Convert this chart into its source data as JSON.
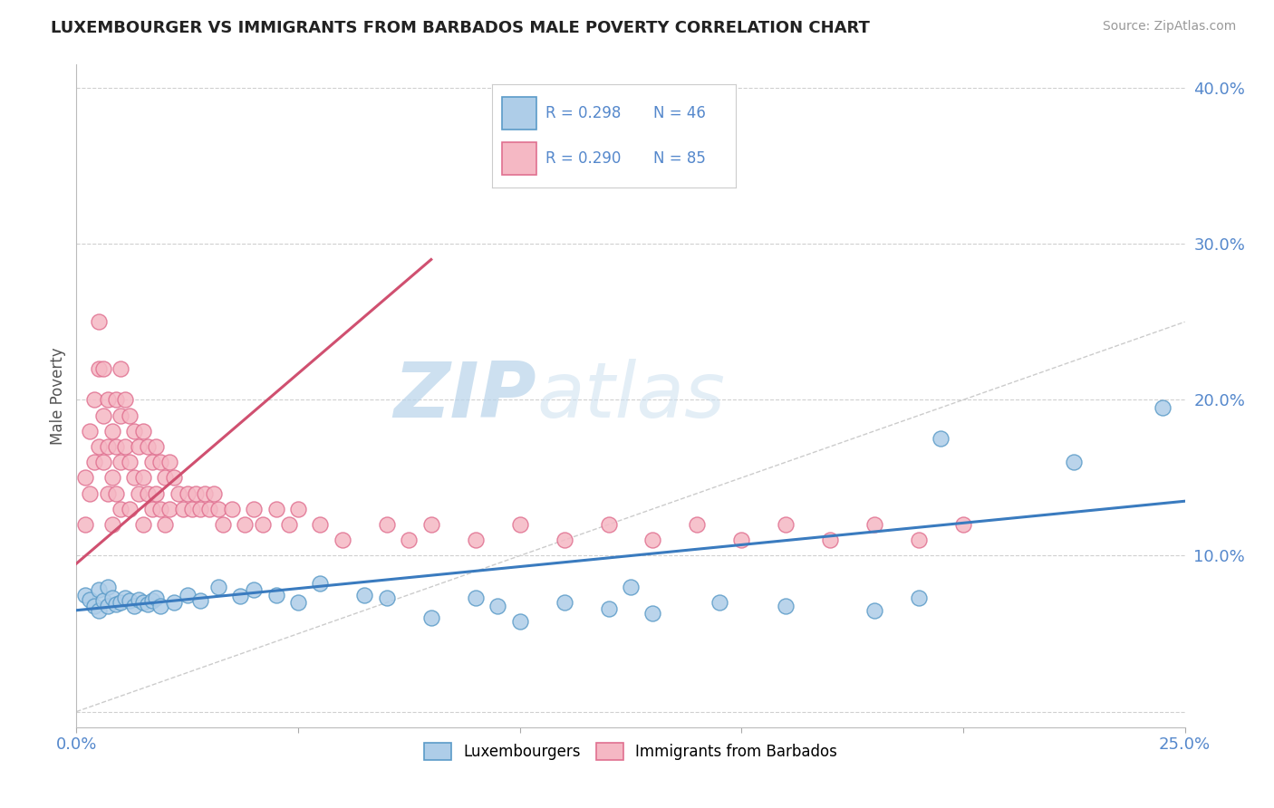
{
  "title": "LUXEMBOURGER VS IMMIGRANTS FROM BARBADOS MALE POVERTY CORRELATION CHART",
  "source": "Source: ZipAtlas.com",
  "ylabel": "Male Poverty",
  "xlim": [
    0.0,
    0.25
  ],
  "ylim": [
    -0.01,
    0.415
  ],
  "legend_r1": "R = 0.298",
  "legend_n1": "N = 46",
  "legend_r2": "R = 0.290",
  "legend_n2": "N = 85",
  "color_lux_fill": "#aecde8",
  "color_lux_edge": "#5b9bc8",
  "color_bar_fill": "#f5b8c4",
  "color_bar_edge": "#e07090",
  "color_lux_line": "#3a7bbf",
  "color_bar_line": "#d05070",
  "watermark_color": "#ccdff0",
  "background_color": "#ffffff",
  "grid_color": "#d0d0d0",
  "tick_color": "#5588cc",
  "ylabel_color": "#555555",
  "title_color": "#222222",
  "source_color": "#999999",
  "lux_x": [
    0.002,
    0.003,
    0.004,
    0.005,
    0.005,
    0.006,
    0.007,
    0.007,
    0.008,
    0.009,
    0.01,
    0.011,
    0.012,
    0.013,
    0.014,
    0.015,
    0.016,
    0.017,
    0.018,
    0.019,
    0.022,
    0.025,
    0.028,
    0.032,
    0.037,
    0.04,
    0.045,
    0.05,
    0.055,
    0.065,
    0.07,
    0.08,
    0.09,
    0.095,
    0.1,
    0.11,
    0.12,
    0.125,
    0.13,
    0.145,
    0.16,
    0.18,
    0.19,
    0.195,
    0.225,
    0.245
  ],
  "lux_y": [
    0.075,
    0.072,
    0.068,
    0.078,
    0.065,
    0.071,
    0.08,
    0.068,
    0.073,
    0.069,
    0.07,
    0.073,
    0.071,
    0.068,
    0.072,
    0.07,
    0.069,
    0.071,
    0.073,
    0.068,
    0.07,
    0.075,
    0.071,
    0.08,
    0.074,
    0.078,
    0.075,
    0.07,
    0.082,
    0.075,
    0.073,
    0.06,
    0.073,
    0.068,
    0.058,
    0.07,
    0.066,
    0.08,
    0.063,
    0.07,
    0.068,
    0.065,
    0.073,
    0.175,
    0.16,
    0.195
  ],
  "bar_x": [
    0.002,
    0.002,
    0.003,
    0.003,
    0.004,
    0.004,
    0.005,
    0.005,
    0.005,
    0.006,
    0.006,
    0.006,
    0.007,
    0.007,
    0.007,
    0.008,
    0.008,
    0.008,
    0.009,
    0.009,
    0.009,
    0.01,
    0.01,
    0.01,
    0.01,
    0.011,
    0.011,
    0.012,
    0.012,
    0.012,
    0.013,
    0.013,
    0.014,
    0.014,
    0.015,
    0.015,
    0.015,
    0.016,
    0.016,
    0.017,
    0.017,
    0.018,
    0.018,
    0.019,
    0.019,
    0.02,
    0.02,
    0.021,
    0.021,
    0.022,
    0.023,
    0.024,
    0.025,
    0.026,
    0.027,
    0.028,
    0.029,
    0.03,
    0.031,
    0.032,
    0.033,
    0.035,
    0.038,
    0.04,
    0.042,
    0.045,
    0.048,
    0.05,
    0.055,
    0.06,
    0.07,
    0.075,
    0.08,
    0.09,
    0.1,
    0.11,
    0.12,
    0.13,
    0.14,
    0.15,
    0.16,
    0.17,
    0.18,
    0.19,
    0.2
  ],
  "bar_y": [
    0.15,
    0.12,
    0.18,
    0.14,
    0.2,
    0.16,
    0.25,
    0.22,
    0.17,
    0.22,
    0.19,
    0.16,
    0.2,
    0.17,
    0.14,
    0.18,
    0.15,
    0.12,
    0.2,
    0.17,
    0.14,
    0.22,
    0.19,
    0.16,
    0.13,
    0.2,
    0.17,
    0.19,
    0.16,
    0.13,
    0.18,
    0.15,
    0.17,
    0.14,
    0.18,
    0.15,
    0.12,
    0.17,
    0.14,
    0.16,
    0.13,
    0.17,
    0.14,
    0.16,
    0.13,
    0.15,
    0.12,
    0.16,
    0.13,
    0.15,
    0.14,
    0.13,
    0.14,
    0.13,
    0.14,
    0.13,
    0.14,
    0.13,
    0.14,
    0.13,
    0.12,
    0.13,
    0.12,
    0.13,
    0.12,
    0.13,
    0.12,
    0.13,
    0.12,
    0.11,
    0.12,
    0.11,
    0.12,
    0.11,
    0.12,
    0.11,
    0.12,
    0.11,
    0.12,
    0.11,
    0.12,
    0.11,
    0.12,
    0.11,
    0.12
  ],
  "lux_trend": [
    0.0,
    0.25,
    0.065,
    0.135
  ],
  "bar_trend": [
    0.0,
    0.08,
    0.095,
    0.29
  ],
  "ref_line": [
    0.0,
    0.25,
    0.0,
    0.25
  ]
}
